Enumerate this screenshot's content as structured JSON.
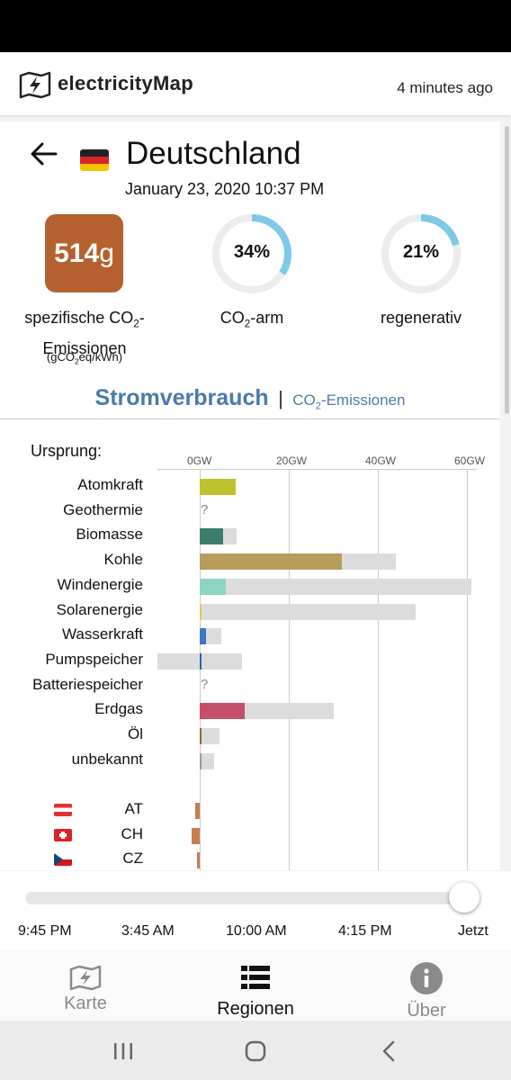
{
  "header": {
    "brand": "electricityMap",
    "updated": "4 minutes ago"
  },
  "zone": {
    "name": "Deutschland",
    "datetime": "January 23, 2020 10:37 PM"
  },
  "metrics": {
    "intensity_value": "514",
    "intensity_unit": "g",
    "intensity_color": "#b5612f",
    "intensity_label_a": "spezifische CO",
    "intensity_label_sub": "2",
    "intensity_label_b": "-",
    "intensity_label_c": "Emissionen",
    "intensity_unit_a": "(gCO",
    "intensity_unit_sub": "2",
    "intensity_unit_b": "eq/kWh)",
    "lowcarbon_value": "34%",
    "lowcarbon_fraction": 0.34,
    "lowcarbon_label_a": "CO",
    "lowcarbon_label_sub": "2",
    "lowcarbon_label_b": "-arm",
    "renewable_value": "21%",
    "renewable_fraction": 0.21,
    "renewable_label": "regenerativ"
  },
  "mode": {
    "active": "Stromverbrauch",
    "separator": "|",
    "other_a": "CO",
    "other_sub": "2",
    "other_b": "-Emissionen"
  },
  "chart_data": {
    "type": "bar",
    "title": "",
    "heading": "Ursprung:",
    "ticks": [
      "0GW",
      "20GW",
      "40GW",
      "60GW"
    ],
    "xlim": [
      -9.5,
      62
    ],
    "categories": [
      "Atomkraft",
      "Geothermie",
      "Biomasse",
      "Kohle",
      "Windenergie",
      "Solarenergie",
      "Wasserkraft",
      "Pumpspeicher",
      "Batteriespeicher",
      "Erdgas",
      "Öl",
      "unbekannt"
    ],
    "series": [
      {
        "name": "production",
        "values": [
          8.1,
          null,
          5.3,
          32,
          5.8,
          0.2,
          1.5,
          0.5,
          null,
          10.2,
          0.4,
          0.4
        ]
      },
      {
        "name": "capacity",
        "values": [
          8.1,
          null,
          8.3,
          44,
          61,
          48.5,
          4.8,
          9.5,
          null,
          30,
          4.4,
          3.3
        ]
      }
    ],
    "negative_capacity": [
      0,
      0,
      0,
      0,
      0,
      0,
      0,
      -9.5,
      0,
      0,
      0,
      0
    ],
    "colors": [
      "#bec22e",
      null,
      "#3a7f6b",
      "#b89c5e",
      "#8ed4c2",
      "#e8c25a",
      "#3c78c0",
      "#2f62b2",
      null,
      "#c44f6b",
      "#8a6b4b",
      "#9c9c9c"
    ],
    "missing_marker": "?",
    "exchanges": [
      {
        "label": "AT",
        "value": -1.0,
        "color": "#c87c52"
      },
      {
        "label": "CH",
        "value": -1.8,
        "color": "#c87c52"
      },
      {
        "label": "CZ",
        "value": -0.6,
        "color": "#c87c52"
      }
    ]
  },
  "timeline": {
    "labels": [
      "9:45 PM",
      "3:45 AM",
      "10:00 AM",
      "4:15 PM",
      "Jetzt"
    ],
    "position_fraction": 1.0
  },
  "nav": {
    "map": "Karte",
    "regions": "Regionen",
    "about": "Über"
  }
}
